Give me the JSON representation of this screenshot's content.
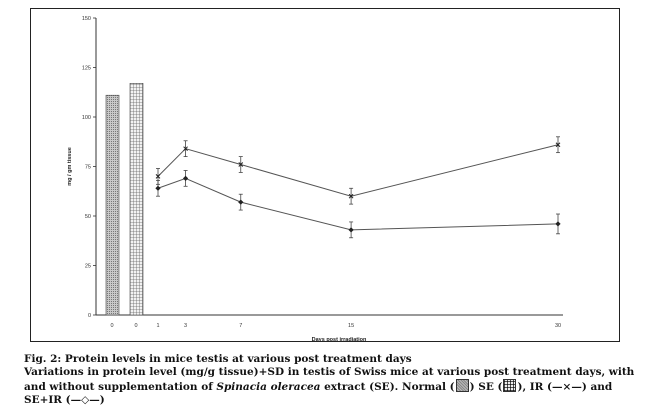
{
  "chart_data": {
    "type": "line",
    "ylabel": "mg / gm tissue",
    "xlabel": "Days post irradiation",
    "ylim": [
      0,
      150
    ],
    "yticks": [
      0,
      25,
      50,
      75,
      100,
      125,
      150
    ],
    "xticks": [
      "0",
      "0",
      "1",
      "3",
      "7",
      "15",
      "30"
    ],
    "bars": [
      {
        "name": "Normal",
        "x": "0",
        "value": 111,
        "pattern": "dotted"
      },
      {
        "name": "SE",
        "x": "0",
        "value": 117,
        "pattern": "grid"
      }
    ],
    "x": [
      1,
      3,
      7,
      15,
      30
    ],
    "series": [
      {
        "name": "IR",
        "values": [
          70,
          84,
          76,
          60,
          86
        ],
        "errors": [
          4,
          4,
          4,
          4,
          4
        ]
      },
      {
        "name": "SE+IR",
        "values": [
          64,
          69,
          57,
          43,
          46
        ],
        "errors": [
          4,
          4,
          4,
          4,
          5
        ]
      }
    ],
    "grid": false
  },
  "caption": {
    "title": "Fig. 2: Protein levels in mice testis at various post treatment days",
    "body_pre": "Variations in protein level (mg/g tissue)+SD in testis of Swiss mice at various post treatment days, with and without supplementation of ",
    "species": "Spinacia oleracea",
    "body_mid": " extract (SE). Normal (",
    "se_text": ") SE (",
    "ir_text": "), IR (—×—) and SE+IR (—◇—)"
  }
}
